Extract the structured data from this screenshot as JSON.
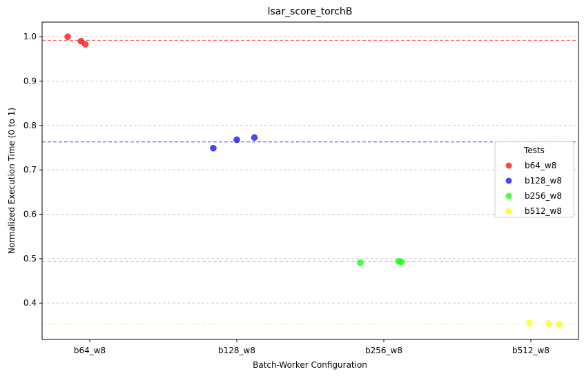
{
  "chart_data": {
    "type": "scatter",
    "title": "lsar_score_torchB",
    "xlabel": "Batch-Worker Configuration",
    "ylabel": "Normalized Execution Time (0 to 1)",
    "categories": [
      "b64_w8",
      "b128_w8",
      "b256_w8",
      "b512_w8"
    ],
    "ylim": [
      0.318,
      1.033
    ],
    "yticks": [
      0.4,
      0.5,
      0.6,
      0.7,
      0.8,
      0.9,
      1.0
    ],
    "ytick_labels": [
      "0.4",
      "0.5",
      "0.6",
      "0.7",
      "0.8",
      "0.9",
      "1.0"
    ],
    "grid": "horizontal dashed",
    "legend": {
      "title": "Tests",
      "placement": "center-right"
    },
    "series": [
      {
        "name": "b64_w8",
        "color": "#ff0000",
        "mean": 0.992,
        "points": [
          {
            "x": -0.15,
            "y": 1.0
          },
          {
            "x": -0.06,
            "y": 0.99
          },
          {
            "x": -0.03,
            "y": 0.983
          }
        ]
      },
      {
        "name": "b128_w8",
        "color": "#0000ff",
        "mean": 0.763,
        "points": [
          {
            "x": 0.84,
            "y": 0.749
          },
          {
            "x": 1.0,
            "y": 0.768
          },
          {
            "x": 1.12,
            "y": 0.773
          }
        ]
      },
      {
        "name": "b256_w8",
        "color": "#00ff00",
        "mean": 0.493,
        "points": [
          {
            "x": 1.84,
            "y": 0.491
          },
          {
            "x": 2.1,
            "y": 0.494
          },
          {
            "x": 2.12,
            "y": 0.493
          }
        ]
      },
      {
        "name": "b512_w8",
        "color": "#ffff00",
        "mean": 0.353,
        "points": [
          {
            "x": 2.99,
            "y": 0.355
          },
          {
            "x": 3.12,
            "y": 0.354
          },
          {
            "x": 3.19,
            "y": 0.352
          }
        ]
      }
    ]
  }
}
